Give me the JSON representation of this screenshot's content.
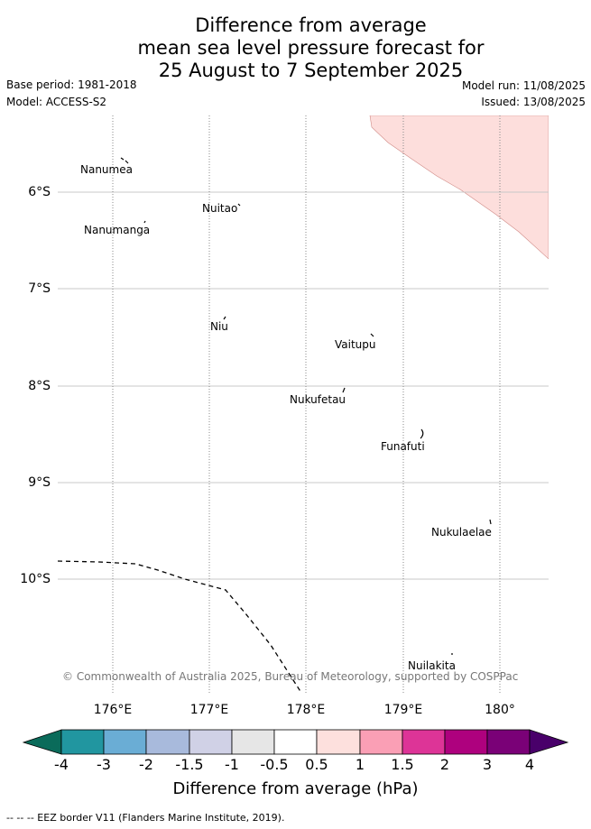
{
  "title": {
    "line1": "Difference from average",
    "line2": "mean sea level pressure forecast for",
    "line3": "25 August to 7 September 2025"
  },
  "meta": {
    "base_period": "Base period: 1981-2018",
    "model": "Model: ACCESS-S2",
    "model_run": "Model run: 11/08/2025",
    "issued": "Issued: 13/08/2025"
  },
  "axes": {
    "lat_labels": [
      "6°S",
      "7°S",
      "8°S",
      "9°S",
      "10°S"
    ],
    "lon_labels": [
      "176°E",
      "177°E",
      "178°E",
      "179°E",
      "180°"
    ]
  },
  "places": [
    "Nanumea",
    "Nuitao",
    "Nanumanga",
    "Niu",
    "Vaitupu",
    "Nukufetau",
    "Funafuti",
    "Nukulaelae",
    "Nuilakita"
  ],
  "copyright": "© Commonwealth of Australia 2025, Bureau of Meteorology, supported by COSPPac",
  "colorbar": {
    "labels": [
      "-4",
      "-3",
      "-2",
      "-1.5",
      "-1",
      "-0.5",
      "0.5",
      "1",
      "1.5",
      "2",
      "3",
      "4"
    ],
    "colors": [
      "#0a6b5a",
      "#2196a0",
      "#6aadd5",
      "#a8badc",
      "#d0d1e6",
      "#e6e6e6",
      "#ffffff",
      "#fde0dd",
      "#fa9fb5",
      "#dd3497",
      "#ae017e",
      "#7a0177",
      "#49006a"
    ],
    "title": "Difference from average (hPa)"
  },
  "map_fill": {
    "shaded_region_color": "#fddedc"
  },
  "footer": "--  --  -- EEZ border V11 (Flanders Marine Institute, 2019)."
}
